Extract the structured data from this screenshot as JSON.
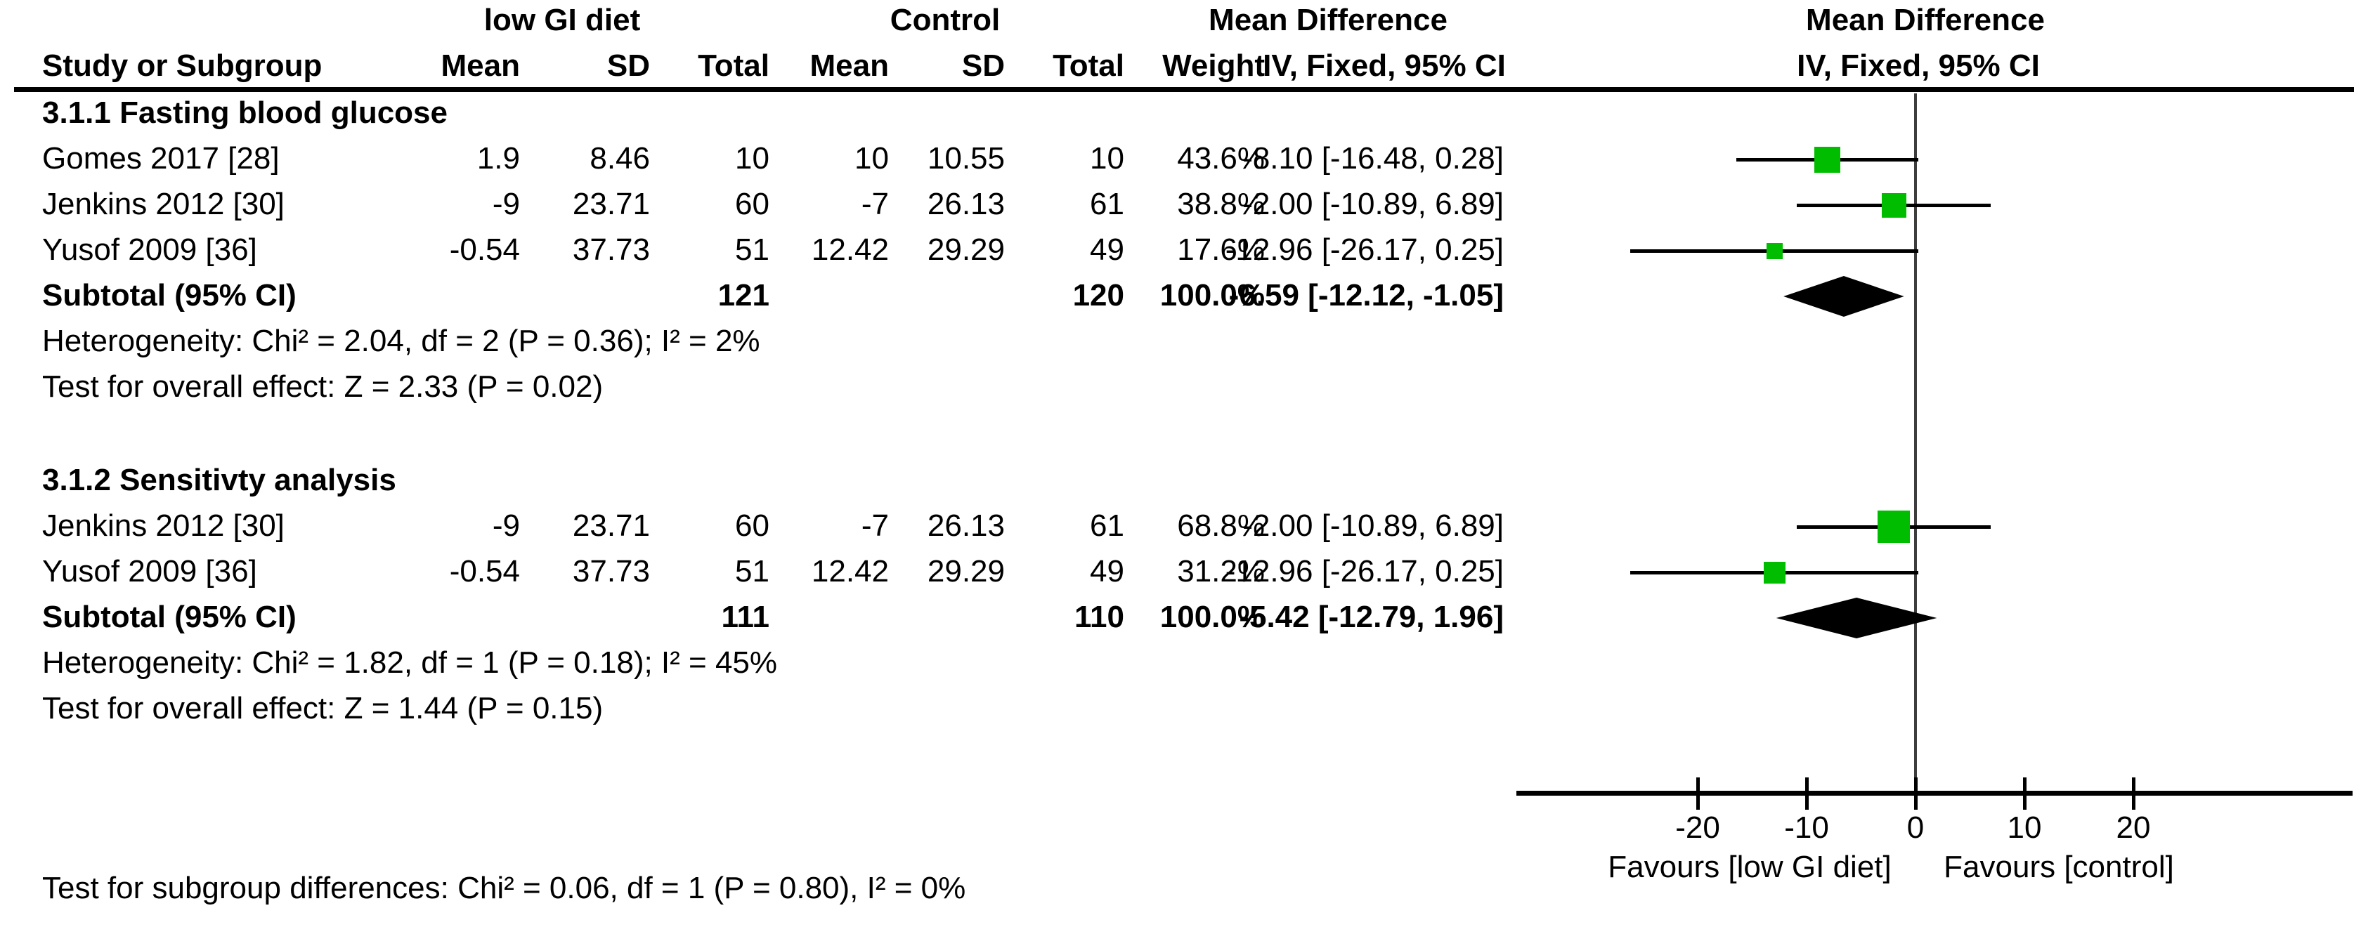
{
  "header": {
    "group1_label": "low GI diet",
    "group2_label": "Control",
    "effect_title": "Mean Difference",
    "plot_title": "Mean Difference",
    "plot_subtitle": "IV, Fixed, 95% CI",
    "columns": [
      "Study or Subgroup",
      "Mean",
      "SD",
      "Total",
      "Mean",
      "SD",
      "Total",
      "Weight",
      "IV, Fixed, 95% CI"
    ]
  },
  "sections": [
    {
      "title": "3.1.1 Fasting blood glucose",
      "studies": [
        {
          "name": "Gomes 2017 [28]",
          "mean1": "1.9",
          "sd1": "8.46",
          "total1": "10",
          "mean2": "10",
          "sd2": "10.55",
          "total2": "10",
          "weight": "43.6%",
          "ci_text": "-8.10 [-16.48, 0.28]",
          "md": -8.1,
          "lo": -16.48,
          "hi": 0.28
        },
        {
          "name": "Jenkins 2012 [30]",
          "mean1": "-9",
          "sd1": "23.71",
          "total1": "60",
          "mean2": "-7",
          "sd2": "26.13",
          "total2": "61",
          "weight": "38.8%",
          "ci_text": "-2.00 [-10.89, 6.89]",
          "md": -2.0,
          "lo": -10.89,
          "hi": 6.89
        },
        {
          "name": "Yusof 2009 [36]",
          "mean1": "-0.54",
          "sd1": "37.73",
          "total1": "51",
          "mean2": "12.42",
          "sd2": "29.29",
          "total2": "49",
          "weight": "17.6%",
          "ci_text": "-12.96 [-26.17, 0.25]",
          "md": -12.96,
          "lo": -26.17,
          "hi": 0.25
        }
      ],
      "subtotal": {
        "label": "Subtotal (95% CI)",
        "total1": "121",
        "total2": "120",
        "weight": "100.0%",
        "ci_text": "-6.59 [-12.12, -1.05]",
        "md": -6.59,
        "lo": -12.12,
        "hi": -1.05
      },
      "heterogeneity": "Heterogeneity: Chi² = 2.04, df = 2 (P = 0.36); I² = 2%",
      "overall": "Test for overall effect: Z = 2.33 (P = 0.02)"
    },
    {
      "title": "3.1.2 Sensitivty analysis",
      "studies": [
        {
          "name": "Jenkins 2012 [30]",
          "mean1": "-9",
          "sd1": "23.71",
          "total1": "60",
          "mean2": "-7",
          "sd2": "26.13",
          "total2": "61",
          "weight": "68.8%",
          "ci_text": "-2.00 [-10.89, 6.89]",
          "md": -2.0,
          "lo": -10.89,
          "hi": 6.89
        },
        {
          "name": "Yusof 2009 [36]",
          "mean1": "-0.54",
          "sd1": "37.73",
          "total1": "51",
          "mean2": "12.42",
          "sd2": "29.29",
          "total2": "49",
          "weight": "31.2%",
          "ci_text": "-12.96 [-26.17, 0.25]",
          "md": -12.96,
          "lo": -26.17,
          "hi": 0.25
        }
      ],
      "subtotal": {
        "label": "Subtotal (95% CI)",
        "total1": "111",
        "total2": "110",
        "weight": "100.0%",
        "ci_text": "-5.42 [-12.79, 1.96]",
        "md": -5.42,
        "lo": -12.79,
        "hi": 1.96
      },
      "heterogeneity": "Heterogeneity: Chi² = 1.82, df = 1 (P = 0.18); I² = 45%",
      "overall": "Test for overall effect: Z = 1.44 (P = 0.15)"
    }
  ],
  "axis": {
    "tick_labels": [
      "-20",
      "-10",
      "0",
      "10",
      "20"
    ],
    "tick_values": [
      -20,
      -10,
      0,
      10,
      20
    ],
    "favours_left": "Favours [low GI diet]",
    "favours_right": "Favours [control]"
  },
  "footer": {
    "subgroup_test": "Test for subgroup differences: Chi² = 0.06, df = 1 (P = 0.80), I² = 0%"
  },
  "colors": {
    "marker_green": "#00BD00",
    "diamond_black": "#000000",
    "line_black": "#000000"
  },
  "chart_data": {
    "type": "scatter",
    "variant": "forest_plot",
    "title": "Mean Difference",
    "effect_measure": "IV, Fixed, 95% CI",
    "xlabel_left": "Favours [low GI diet]",
    "xlabel_right": "Favours [control]",
    "x_ticks": [
      -20,
      -10,
      0,
      10,
      20
    ],
    "xlim": [
      -37,
      40
    ],
    "subgroups": [
      {
        "name": "3.1.1 Fasting blood glucose",
        "studies": [
          {
            "study": "Gomes 2017 [28]",
            "group1": {
              "mean": 1.9,
              "sd": 8.46,
              "total": 10
            },
            "group2": {
              "mean": 10,
              "sd": 10.55,
              "total": 10
            },
            "weight_pct": 43.6,
            "md": -8.1,
            "ci95": [
              -16.48,
              0.28
            ]
          },
          {
            "study": "Jenkins 2012 [30]",
            "group1": {
              "mean": -9,
              "sd": 23.71,
              "total": 60
            },
            "group2": {
              "mean": -7,
              "sd": 26.13,
              "total": 61
            },
            "weight_pct": 38.8,
            "md": -2.0,
            "ci95": [
              -10.89,
              6.89
            ]
          },
          {
            "study": "Yusof 2009 [36]",
            "group1": {
              "mean": -0.54,
              "sd": 37.73,
              "total": 51
            },
            "group2": {
              "mean": 12.42,
              "sd": 29.29,
              "total": 49
            },
            "weight_pct": 17.6,
            "md": -12.96,
            "ci95": [
              -26.17,
              0.25
            ]
          }
        ],
        "subtotal": {
          "total1": 121,
          "total2": 120,
          "weight_pct": 100.0,
          "md": -6.59,
          "ci95": [
            -12.12,
            -1.05
          ]
        },
        "heterogeneity": "Chi² = 2.04, df = 2 (P = 0.36); I² = 2%",
        "overall_effect": "Z = 2.33 (P = 0.02)"
      },
      {
        "name": "3.1.2 Sensitivty analysis",
        "studies": [
          {
            "study": "Jenkins 2012 [30]",
            "group1": {
              "mean": -9,
              "sd": 23.71,
              "total": 60
            },
            "group2": {
              "mean": -7,
              "sd": 26.13,
              "total": 61
            },
            "weight_pct": 68.8,
            "md": -2.0,
            "ci95": [
              -10.89,
              6.89
            ]
          },
          {
            "study": "Yusof 2009 [36]",
            "group1": {
              "mean": -0.54,
              "sd": 37.73,
              "total": 51
            },
            "group2": {
              "mean": 12.42,
              "sd": 29.29,
              "total": 49
            },
            "weight_pct": 31.2,
            "md": -12.96,
            "ci95": [
              -26.17,
              0.25
            ]
          }
        ],
        "subtotal": {
          "total1": 111,
          "total2": 110,
          "weight_pct": 100.0,
          "md": -5.42,
          "ci95": [
            -12.79,
            1.96
          ]
        },
        "heterogeneity": "Chi² = 1.82, df = 1 (P = 0.18); I² = 45%",
        "overall_effect": "Z = 1.44 (P = 0.15)"
      }
    ],
    "subgroup_difference": "Chi² = 0.06, df = 1 (P = 0.80), I² = 0%"
  }
}
